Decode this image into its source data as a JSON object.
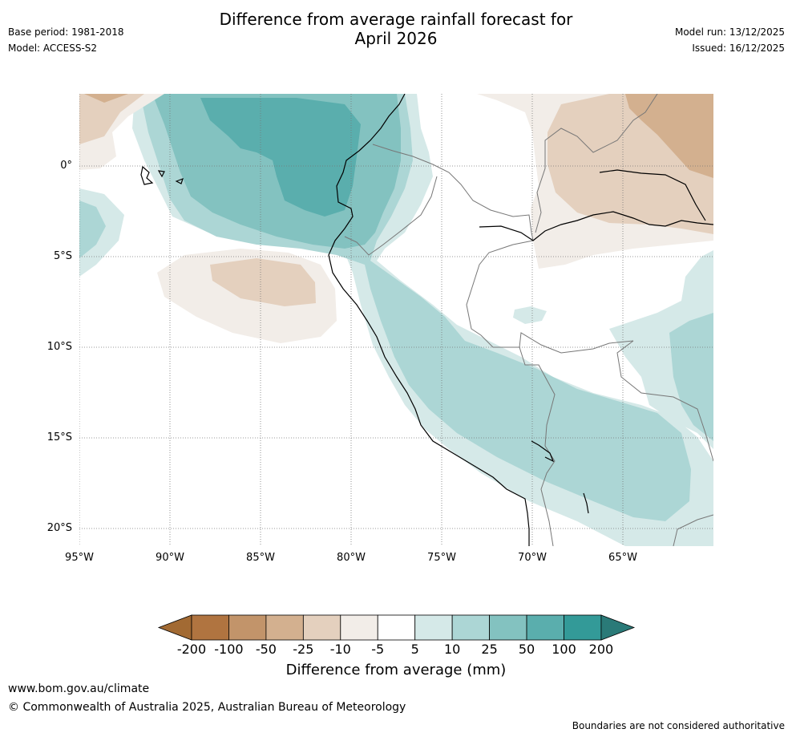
{
  "header": {
    "title_line1": "Difference from average rainfall forecast for",
    "title_line2": "April 2026",
    "base_period": "Base period: 1981-2018",
    "model": "Model: ACCESS-S2",
    "model_run": "Model run: 13/12/2025",
    "issued": "Issued: 16/12/2025"
  },
  "map": {
    "lat_labels": [
      "0°",
      "5°S",
      "10°S",
      "15°S",
      "20°S"
    ],
    "lon_labels": [
      "95°W",
      "90°W",
      "85°W",
      "80°W",
      "75°W",
      "70°W",
      "65°W"
    ]
  },
  "colorbar": {
    "ticks": [
      "-200",
      "-100",
      "-50",
      "-25",
      "-10",
      "-5",
      "5",
      "10",
      "25",
      "50",
      "100",
      "200"
    ],
    "colors": [
      "#a26a33",
      "#b07440",
      "#c2946a",
      "#d3b08f",
      "#e4d0be",
      "#f2ede8",
      "#ffffff",
      "#d5e9e8",
      "#acd6d5",
      "#83c2c0",
      "#5aaead",
      "#339a98",
      "#2a7a78"
    ],
    "label": "Difference from average (mm)"
  },
  "footer": {
    "url": "www.bom.gov.au/climate",
    "copyright": "© Commonwealth of Australia 2025, Australian Bureau of Meteorology",
    "disclaimer": "Boundaries are not considered authoritative"
  }
}
